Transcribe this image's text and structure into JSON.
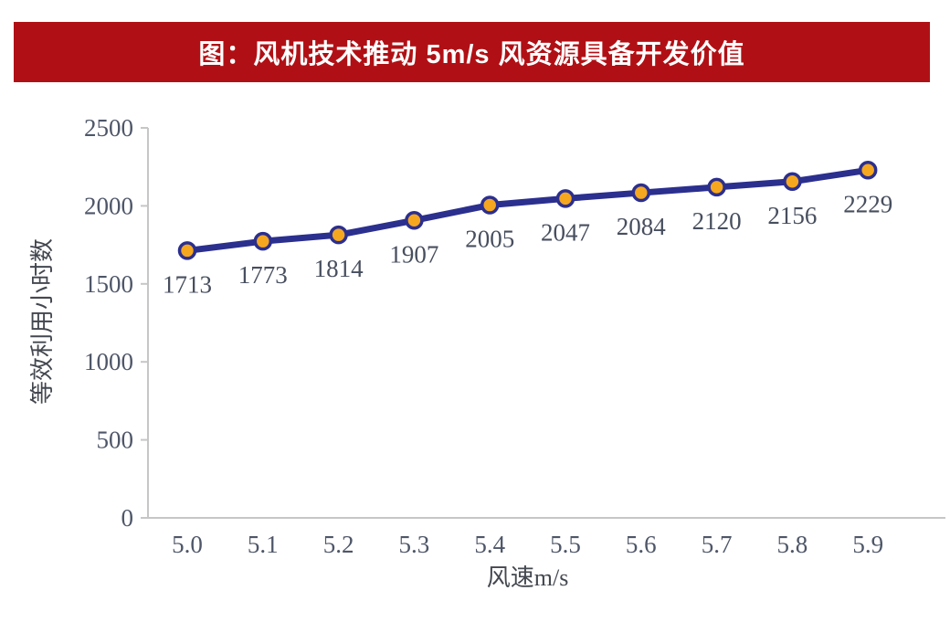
{
  "title": {
    "text": "图：风机技术推动 5m/s 风资源具备开发价值",
    "bg_color": "#b01015",
    "text_color": "#ffffff"
  },
  "chart_data": {
    "type": "line",
    "categories": [
      "5.0",
      "5.1",
      "5.2",
      "5.3",
      "5.4",
      "5.5",
      "5.6",
      "5.7",
      "5.8",
      "5.9"
    ],
    "series": [
      {
        "name": "等效利用小时数",
        "values": [
          1713,
          1773,
          1814,
          1907,
          2005,
          2047,
          2084,
          2120,
          2156,
          2229
        ]
      }
    ],
    "title": "",
    "xlabel": "风速m/s",
    "ylabel": "等效利用小时数",
    "ylim": [
      0,
      2500
    ],
    "yticks": [
      0,
      500,
      1000,
      1500,
      2000,
      2500
    ],
    "grid": false,
    "legend_position": "none",
    "data_labels_visible": true,
    "colors": {
      "line": "#2b2f8e",
      "marker_fill": "#f5a71f",
      "marker_stroke": "#2b2f8e",
      "axis_line": "#c6c6c6",
      "tick_label": "#4e5668",
      "data_label": "#474e5e",
      "axis_title": "#43474f"
    }
  }
}
